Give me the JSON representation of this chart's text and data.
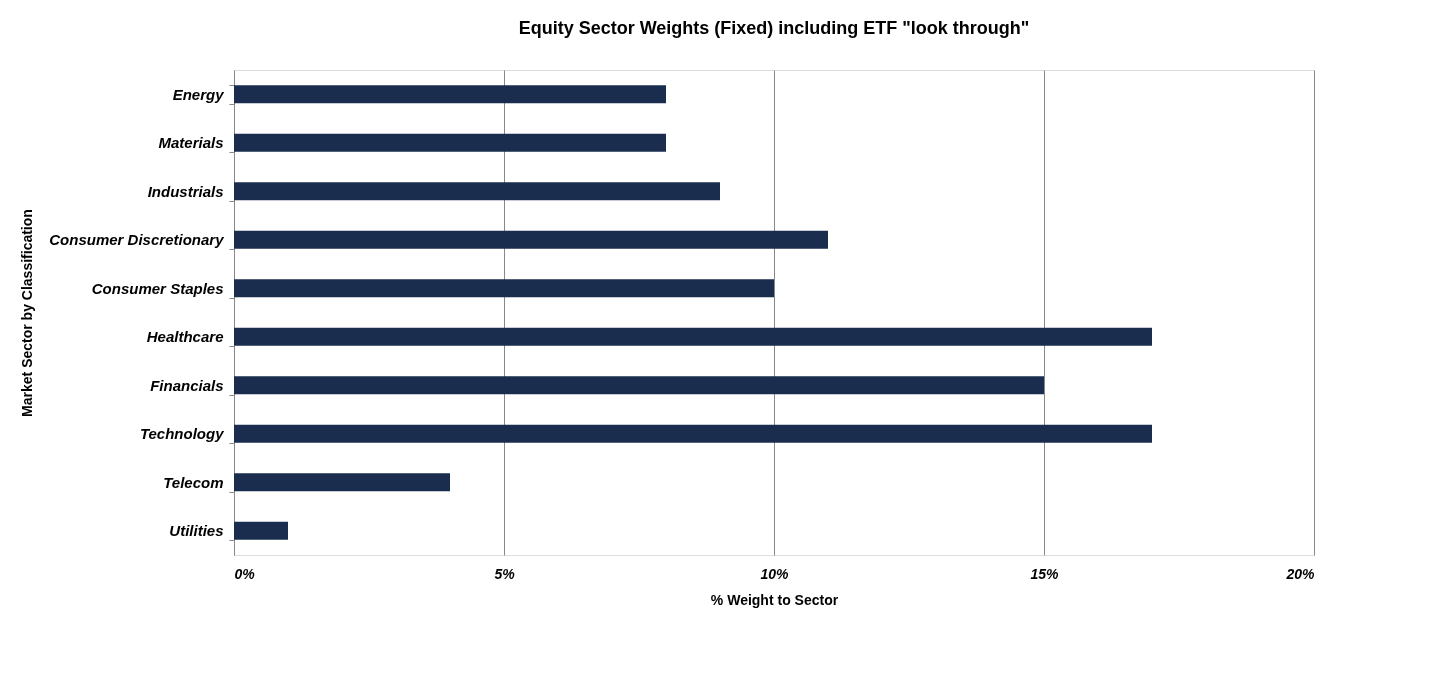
{
  "chart_data": {
    "type": "bar",
    "orientation": "horizontal",
    "title": "Equity Sector Weights (Fixed) including ETF \"look through\"",
    "xlabel": "% Weight to Sector",
    "ylabel": "Market Sector by Classification",
    "categories": [
      "Energy",
      "Materials",
      "Industrials",
      "Consumer Discretionary",
      "Consumer Staples",
      "Healthcare",
      "Financials",
      "Technology",
      "Telecom",
      "Utilities"
    ],
    "values": [
      8,
      8,
      9,
      11,
      10,
      17,
      15,
      17,
      4,
      1
    ],
    "color": "#1b2d4f",
    "xlim": [
      0,
      20
    ],
    "xticks": [
      {
        "value": 0,
        "label": "0%"
      },
      {
        "value": 5,
        "label": "5%"
      },
      {
        "value": 10,
        "label": "10%"
      },
      {
        "value": 15,
        "label": "15%"
      },
      {
        "value": 20,
        "label": "20%"
      }
    ],
    "grid": "x"
  }
}
